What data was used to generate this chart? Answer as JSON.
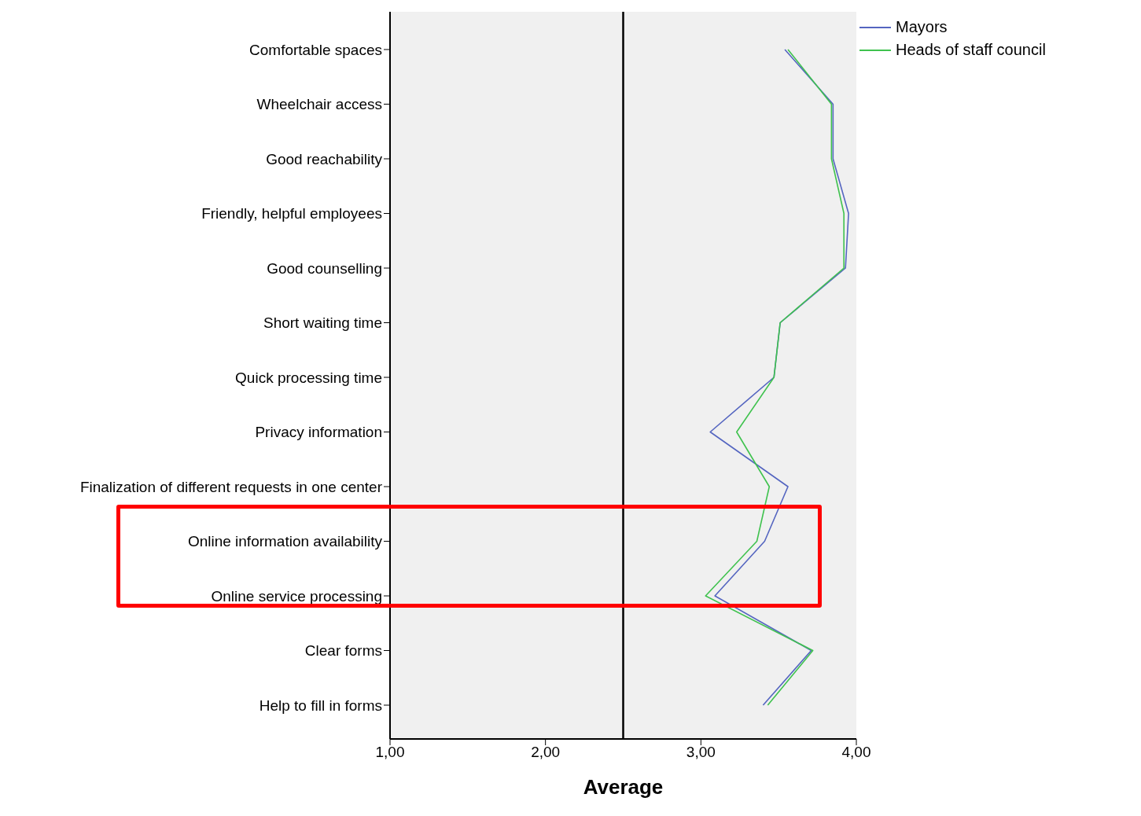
{
  "chart_data": {
    "type": "line",
    "orientation": "horizontal",
    "xlabel": "Average",
    "categories": [
      "Comfortable spaces",
      "Wheelchair access",
      "Good reachability",
      "Friendly, helpful employees",
      "Good counselling",
      "Short waiting time",
      "Quick processing time",
      "Privacy information",
      "Finalization of different requests in one center",
      "Online information availability",
      "Online service processing",
      "Clear forms",
      "Help to fill in forms"
    ],
    "series": [
      {
        "name": "Mayors",
        "color": "#5465c0",
        "values": [
          3.54,
          3.85,
          3.85,
          3.95,
          3.93,
          3.51,
          3.47,
          3.06,
          3.56,
          3.41,
          3.09,
          3.71,
          3.4
        ]
      },
      {
        "name": "Heads of staff council",
        "color": "#3fc24e",
        "values": [
          3.56,
          3.84,
          3.84,
          3.92,
          3.92,
          3.51,
          3.47,
          3.23,
          3.44,
          3.36,
          3.03,
          3.72,
          3.43
        ]
      }
    ],
    "xlim": [
      1,
      4
    ],
    "xticks": [
      {
        "value": 1,
        "label": "1,00"
      },
      {
        "value": 2,
        "label": "2,00"
      },
      {
        "value": 3,
        "label": "3,00"
      },
      {
        "value": 4,
        "label": "4,00"
      }
    ],
    "ref_lines": [
      {
        "axis": "x",
        "value": 2.5,
        "color": "#000000"
      }
    ],
    "grid": false,
    "legend": "top right",
    "marker": "none",
    "line_style": "solid"
  }
}
